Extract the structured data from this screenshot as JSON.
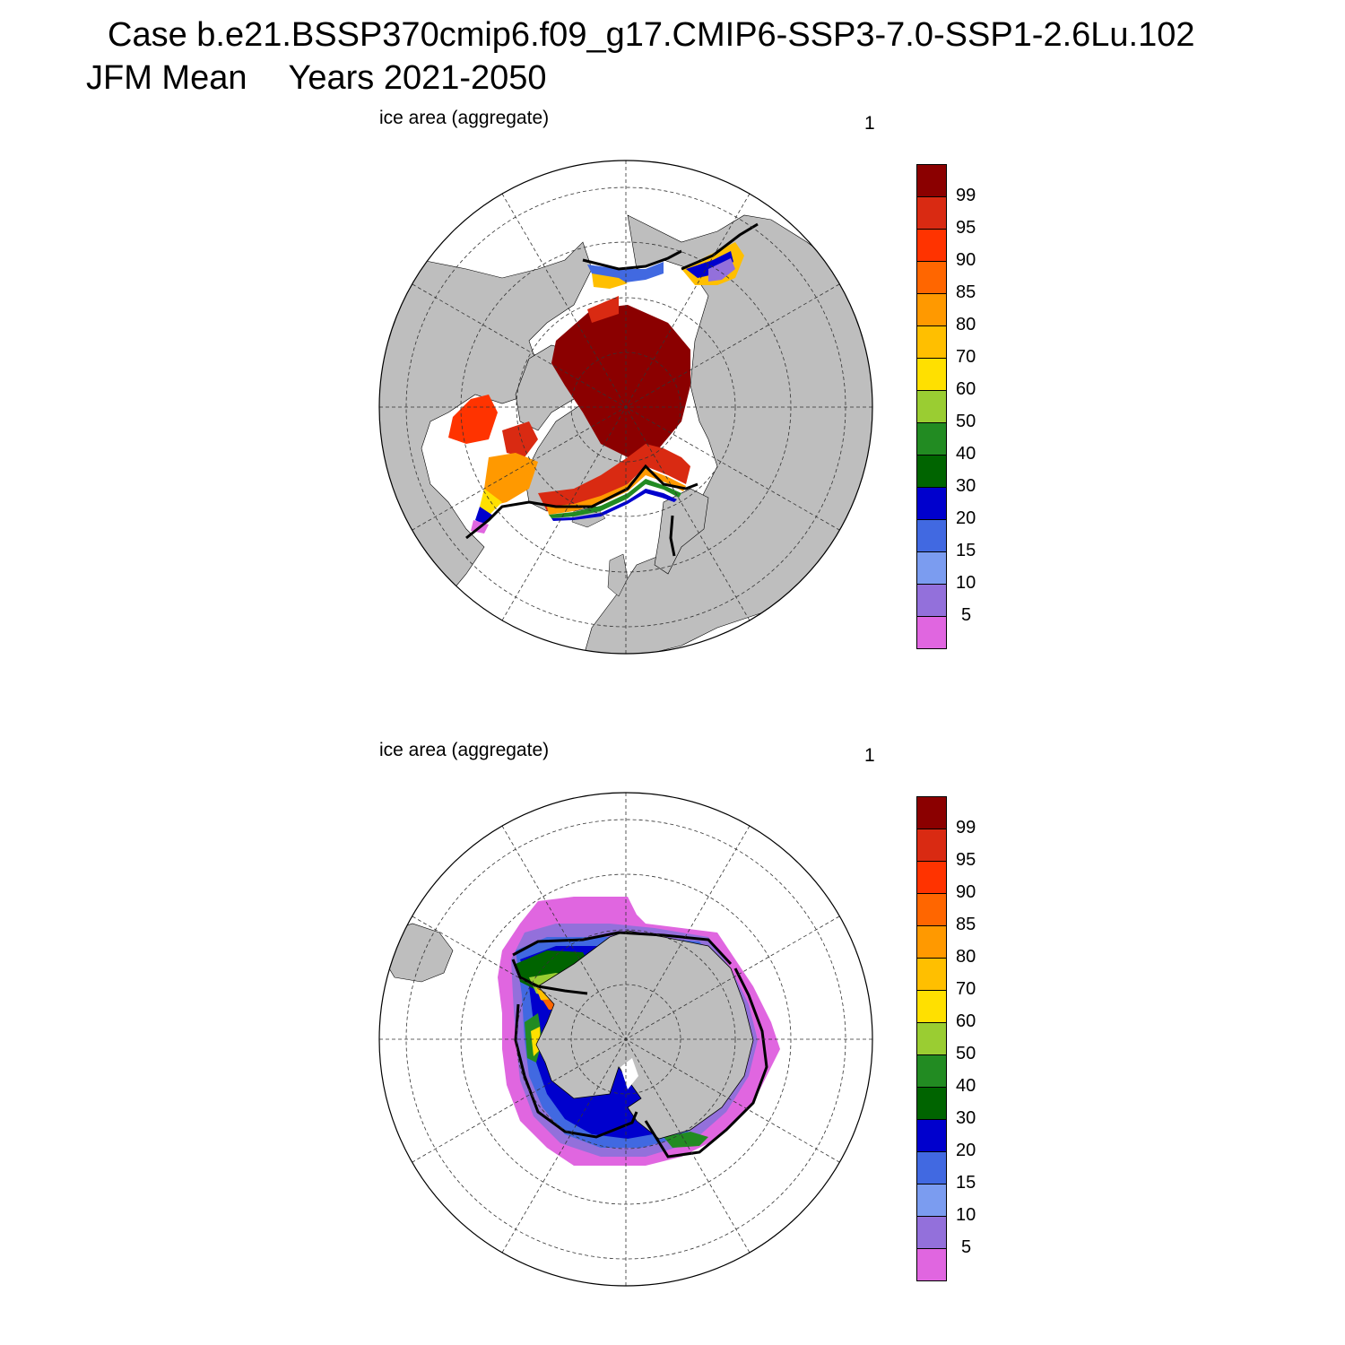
{
  "header": {
    "case_line": "Case b.e21.BSSP370cmip6.f09_g17.CMIP6-SSP3-7.0-SSP1-2.6Lu.102",
    "season": "JFM Mean",
    "years": "Years 2021-2050"
  },
  "panels": [
    {
      "title": "ice area  (aggregate)",
      "number": "1",
      "hemisphere": "north"
    },
    {
      "title": "ice area  (aggregate)",
      "number": "1",
      "hemisphere": "south"
    }
  ],
  "colorbar": {
    "labels": [
      "99",
      "95",
      "90",
      "85",
      "80",
      "70",
      "60",
      "50",
      "40",
      "30",
      "20",
      "15",
      "10",
      "5"
    ],
    "colors_top_to_bottom": [
      "#8b0000",
      "#d92a12",
      "#ff3300",
      "#ff6600",
      "#ff9900",
      "#ffbf00",
      "#ffe000",
      "#9acd32",
      "#228b22",
      "#006400",
      "#0000cd",
      "#4169e1",
      "#7b9cf0",
      "#9370db",
      "#e066e0"
    ]
  },
  "map_colors": {
    "land": "#bebebe",
    "ocean": "#ffffff",
    "observed_edge": "#000000"
  }
}
